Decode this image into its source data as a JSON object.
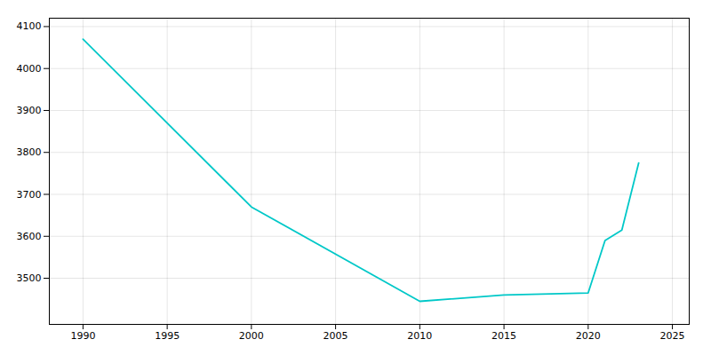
{
  "chart_data": {
    "type": "line",
    "x": [
      1990,
      2000,
      2010,
      2015,
      2020,
      2021,
      2022,
      2023
    ],
    "values": [
      4070,
      3670,
      3445,
      3460,
      3465,
      3590,
      3615,
      3775
    ],
    "color": "#00C8C8",
    "xlim": [
      1988,
      2026
    ],
    "ylim": [
      3390,
      4120
    ],
    "xticks": [
      1990,
      1995,
      2000,
      2005,
      2010,
      2015,
      2020,
      2025
    ],
    "yticks": [
      3500,
      3600,
      3700,
      3800,
      3900,
      4000,
      4100
    ],
    "grid": true
  }
}
